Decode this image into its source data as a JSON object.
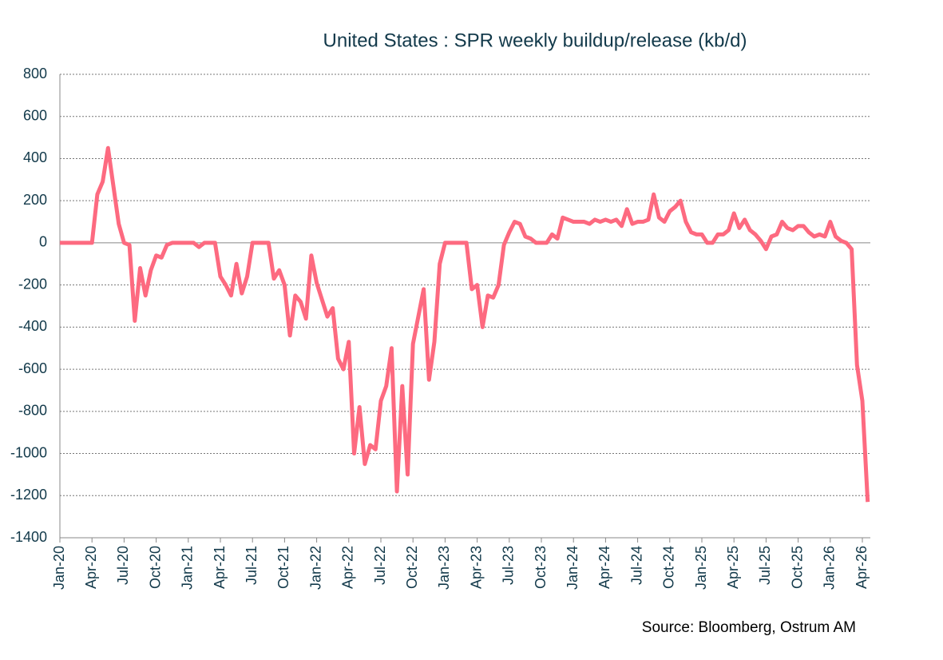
{
  "chart_data": {
    "type": "line",
    "title": "United States : SPR weekly buildup/release (kb/d)",
    "source": "Source: Bloomberg, Ostrum AM",
    "categories": [
      "Jan-20",
      null,
      null,
      null,
      null,
      null,
      "Apr-20",
      null,
      null,
      null,
      null,
      null,
      "Jul-20",
      null,
      null,
      null,
      null,
      null,
      "Oct-20",
      null,
      null,
      null,
      null,
      null,
      "Jan-21",
      null,
      null,
      null,
      null,
      null,
      "Apr-21",
      null,
      null,
      null,
      null,
      null,
      "Jul-21",
      null,
      null,
      null,
      null,
      null,
      "Oct-21",
      null,
      null,
      null,
      null,
      null,
      "Jan-22",
      null,
      null,
      null,
      null,
      null,
      "Apr-22",
      null,
      null,
      null,
      null,
      null,
      "Jul-22",
      null,
      null,
      null,
      null,
      null,
      "Oct-22",
      null,
      null,
      null,
      null,
      null,
      "Jan-23",
      null,
      null,
      null,
      null,
      null,
      "Apr-23",
      null,
      null,
      null,
      null,
      null,
      "Jul-23",
      null,
      null,
      null,
      null,
      null,
      "Oct-23",
      null,
      null,
      null,
      null,
      null,
      "Jan-24",
      null,
      null,
      null,
      null,
      null,
      "Apr-24",
      null,
      null,
      null,
      null,
      null,
      "Jul-24",
      null,
      null,
      null,
      null,
      null,
      "Oct-24",
      null,
      null,
      null,
      null,
      null,
      "Jan-25",
      null,
      null,
      null,
      null,
      null,
      "Apr-25",
      null,
      null,
      null,
      null,
      null,
      "Jul-25",
      null,
      null,
      null,
      null,
      null,
      "Oct-25",
      null,
      null,
      null,
      null,
      null,
      "Jan-26",
      null,
      null,
      null,
      null,
      null,
      "Apr-26",
      null
    ],
    "series": [
      {
        "name": "SPR weekly buildup/release",
        "color": "#fd6a80",
        "values": [
          0,
          0,
          0,
          0,
          0,
          0,
          0,
          230,
          290,
          450,
          270,
          90,
          0,
          -10,
          -370,
          -120,
          -250,
          -130,
          -60,
          -70,
          -10,
          0,
          0,
          0,
          0,
          0,
          -20,
          0,
          0,
          0,
          -160,
          -200,
          -250,
          -100,
          -240,
          -160,
          0,
          0,
          0,
          0,
          -170,
          -130,
          -200,
          -440,
          -250,
          -280,
          -360,
          -60,
          -190,
          -270,
          -350,
          -310,
          -550,
          -600,
          -470,
          -1000,
          -780,
          -1050,
          -960,
          -980,
          -750,
          -680,
          -500,
          -1180,
          -680,
          -1100,
          -480,
          -350,
          -220,
          -650,
          -470,
          -100,
          0,
          0,
          0,
          0,
          0,
          -220,
          -200,
          -400,
          -250,
          -260,
          -200,
          -10,
          50,
          100,
          90,
          30,
          20,
          0,
          0,
          0,
          40,
          20,
          120,
          110,
          100,
          100,
          100,
          90,
          110,
          100,
          110,
          100,
          110,
          80,
          160,
          90,
          100,
          100,
          110,
          230,
          120,
          100,
          150,
          170,
          200,
          100,
          50,
          40,
          40,
          0,
          0,
          40,
          40,
          60,
          140,
          70,
          110,
          60,
          40,
          10,
          -30,
          30,
          40,
          100,
          70,
          60,
          80,
          80,
          50,
          30,
          40,
          30,
          100,
          30,
          10,
          0,
          -30,
          -580,
          -750,
          -1230
        ]
      }
    ],
    "ylim": [
      -1400,
      800
    ],
    "yticks": [
      -1400,
      -1200,
      -1000,
      -800,
      -600,
      -400,
      -200,
      0,
      200,
      400,
      600,
      800
    ],
    "grid": true
  }
}
